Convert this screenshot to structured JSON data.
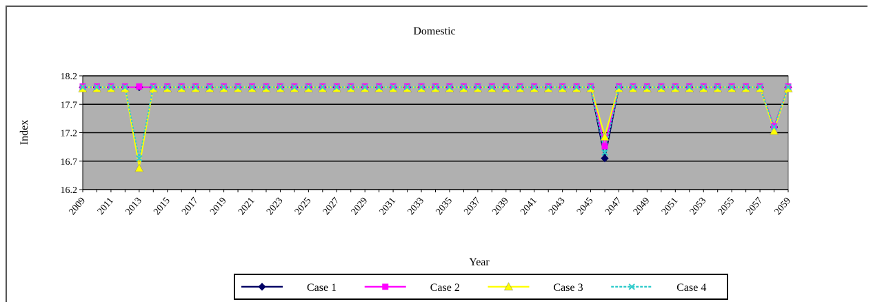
{
  "chart_data": {
    "type": "line",
    "title": "Domestic",
    "xlabel": "Year",
    "ylabel": "Index",
    "ylim": [
      16.2,
      18.2
    ],
    "yticks": [
      "16.2",
      "16.7",
      "17.2",
      "17.7",
      "18.2"
    ],
    "x": [
      2009,
      2010,
      2011,
      2012,
      2013,
      2014,
      2015,
      2016,
      2017,
      2018,
      2019,
      2020,
      2021,
      2022,
      2023,
      2024,
      2025,
      2026,
      2027,
      2028,
      2029,
      2030,
      2031,
      2032,
      2033,
      2034,
      2035,
      2036,
      2037,
      2038,
      2039,
      2040,
      2041,
      2042,
      2043,
      2044,
      2045,
      2046,
      2047,
      2048,
      2049,
      2050,
      2051,
      2052,
      2053,
      2054,
      2055,
      2056,
      2057,
      2058,
      2059
    ],
    "xtick_labels": [
      "2009",
      "2011",
      "2013",
      "2015",
      "2017",
      "2019",
      "2021",
      "2023",
      "2025",
      "2027",
      "2029",
      "2031",
      "2033",
      "2035",
      "2037",
      "2039",
      "2041",
      "2043",
      "2045",
      "2047",
      "2049",
      "2051",
      "2053",
      "2055",
      "2057",
      "2059"
    ],
    "grid": true,
    "legend_position": "bottom",
    "series": [
      {
        "name": "Case 1",
        "color": "#000066",
        "marker": "diamond",
        "line": "solid",
        "values": [
          18,
          18,
          18,
          18,
          18,
          18,
          18,
          18,
          18,
          18,
          18,
          18,
          18,
          18,
          18,
          18,
          18,
          18,
          18,
          18,
          18,
          18,
          18,
          18,
          18,
          18,
          18,
          18,
          18,
          18,
          18,
          18,
          18,
          18,
          18,
          18,
          18,
          16.75,
          18,
          18,
          18,
          18,
          18,
          18,
          18,
          18,
          18,
          18,
          18,
          17.3,
          18
        ]
      },
      {
        "name": "Case 2",
        "color": "#ff00ff",
        "marker": "square",
        "line": "solid",
        "values": [
          18,
          18,
          18,
          18,
          18,
          18,
          18,
          18,
          18,
          18,
          18,
          18,
          18,
          18,
          18,
          18,
          18,
          18,
          18,
          18,
          18,
          18,
          18,
          18,
          18,
          18,
          18,
          18,
          18,
          18,
          18,
          18,
          18,
          18,
          18,
          18,
          18,
          16.95,
          18,
          18,
          18,
          18,
          18,
          18,
          18,
          18,
          18,
          18,
          18,
          17.3,
          18
        ]
      },
      {
        "name": "Case 3",
        "color": "#ffff00",
        "marker": "triangle",
        "line": "solid",
        "values": [
          18,
          18,
          18,
          18,
          16.6,
          18,
          18,
          18,
          18,
          18,
          18,
          18,
          18,
          18,
          18,
          18,
          18,
          18,
          18,
          18,
          18,
          18,
          18,
          18,
          18,
          18,
          18,
          18,
          18,
          18,
          18,
          18,
          18,
          18,
          18,
          18,
          18,
          17.15,
          18,
          18,
          18,
          18,
          18,
          18,
          18,
          18,
          18,
          18,
          18,
          17.25,
          18
        ]
      },
      {
        "name": "Case 4",
        "color": "#33cccc",
        "marker": "x",
        "line": "dashed",
        "values": [
          18,
          18,
          18,
          18,
          16.75,
          18,
          18,
          18,
          18,
          18,
          18,
          18,
          18,
          18,
          18,
          18,
          18,
          18,
          18,
          18,
          18,
          18,
          18,
          18,
          18,
          18,
          18,
          18,
          18,
          18,
          18,
          18,
          18,
          18,
          18,
          18,
          18,
          16.85,
          18,
          18,
          18,
          18,
          18,
          18,
          18,
          18,
          18,
          18,
          18,
          17.3,
          18
        ]
      }
    ]
  }
}
